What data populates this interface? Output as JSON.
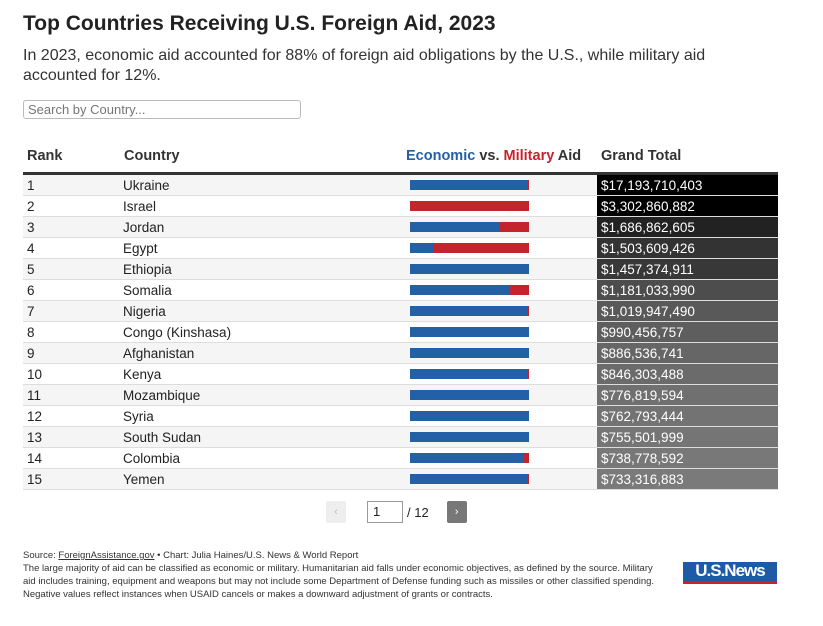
{
  "title": "Top Countries Receiving U.S. Foreign Aid, 2023",
  "subtitle": "In 2023, economic aid accounted for 88% of foreign aid obligations by the U.S., while military aid accounted for 12%.",
  "search": {
    "placeholder": "Search by Country..."
  },
  "headers": {
    "rank": "Rank",
    "country": "Country",
    "economic": "Economic",
    "vs": " vs. ",
    "military": "Military",
    "aid": " Aid",
    "total": "Grand Total"
  },
  "colors": {
    "economic": "#2360a5",
    "military": "#c4242b"
  },
  "rows": [
    {
      "rank": "1",
      "country": "Ukraine",
      "economic_share": 0.98,
      "total": "$17,193,710,403",
      "shade": "#000000"
    },
    {
      "rank": "2",
      "country": "Israel",
      "economic_share": 0.0,
      "total": "$3,302,860,882",
      "shade": "#000000"
    },
    {
      "rank": "3",
      "country": "Jordan",
      "economic_share": 0.75,
      "total": "$1,686,862,605",
      "shade": "#222222"
    },
    {
      "rank": "4",
      "country": "Egypt",
      "economic_share": 0.19,
      "total": "$1,503,609,426",
      "shade": "#333333"
    },
    {
      "rank": "5",
      "country": "Ethiopia",
      "economic_share": 1.0,
      "total": "$1,457,374,911",
      "shade": "#383838"
    },
    {
      "rank": "6",
      "country": "Somalia",
      "economic_share": 0.84,
      "total": "$1,181,033,990",
      "shade": "#4d4d4d"
    },
    {
      "rank": "7",
      "country": "Nigeria",
      "economic_share": 0.99,
      "total": "$1,019,947,490",
      "shade": "#595959"
    },
    {
      "rank": "8",
      "country": "Congo (Kinshasa)",
      "economic_share": 1.0,
      "total": "$990,456,757",
      "shade": "#5e5e5e"
    },
    {
      "rank": "9",
      "country": "Afghanistan",
      "economic_share": 1.0,
      "total": "$886,536,741",
      "shade": "#666666"
    },
    {
      "rank": "10",
      "country": "Kenya",
      "economic_share": 0.99,
      "total": "$846,303,488",
      "shade": "#6b6b6b"
    },
    {
      "rank": "11",
      "country": "Mozambique",
      "economic_share": 1.0,
      "total": "$776,819,594",
      "shade": "#707070"
    },
    {
      "rank": "12",
      "country": "Syria",
      "economic_share": 1.0,
      "total": "$762,793,444",
      "shade": "#737373"
    },
    {
      "rank": "13",
      "country": "South Sudan",
      "economic_share": 1.0,
      "total": "$755,501,999",
      "shade": "#757575"
    },
    {
      "rank": "14",
      "country": "Colombia",
      "economic_share": 0.95,
      "total": "$738,778,592",
      "shade": "#787878"
    },
    {
      "rank": "15",
      "country": "Yemen",
      "economic_share": 0.99,
      "total": "$733,316,883",
      "shade": "#7a7a7a"
    }
  ],
  "pager": {
    "prev": "‹",
    "page": "1",
    "of": "/ 12",
    "next": "›"
  },
  "footer": {
    "source_label": "Source: ",
    "source_link": "ForeignAssistance.gov",
    "credit": " • Chart: Julia Haines/U.S. News & World Report",
    "note": "The large majority of aid can be classified as economic or military. Humanitarian aid falls under economic objectives, as defined by the source. Military aid includes training, equipment and weapons but may not include some Department of Defense funding such as missiles or other classified spending. Negative values reflect instances when USAID cancels or makes a downward adjustment of grants or contracts."
  },
  "logo": "U.S.News"
}
